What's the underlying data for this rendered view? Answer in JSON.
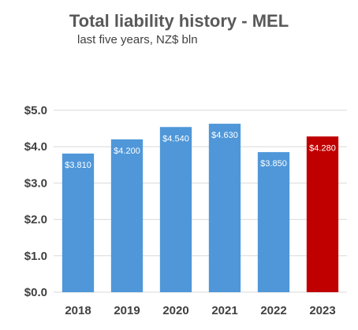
{
  "chart_data": {
    "type": "bar",
    "title": "Total liability history - MEL",
    "subtitle": "last five years, NZ$ bln",
    "categories": [
      "2018",
      "2019",
      "2020",
      "2021",
      "2022",
      "2023"
    ],
    "values": [
      3.81,
      4.2,
      4.54,
      4.63,
      3.85,
      4.28
    ],
    "data_labels": [
      "$3.810",
      "$4.200",
      "$4.540",
      "$4.630",
      "$3.850",
      "$4.280"
    ],
    "colors": [
      "#4f97d9",
      "#4f97d9",
      "#4f97d9",
      "#4f97d9",
      "#4f97d9",
      "#c00000"
    ],
    "ylim": [
      0,
      5
    ],
    "yticks": [
      0,
      1,
      2,
      3,
      4,
      5
    ],
    "ytick_labels": [
      "$0.0",
      "$1.0",
      "$2.0",
      "$3.0",
      "$4.0",
      "$5.0"
    ],
    "grid": true,
    "legend": "none"
  }
}
